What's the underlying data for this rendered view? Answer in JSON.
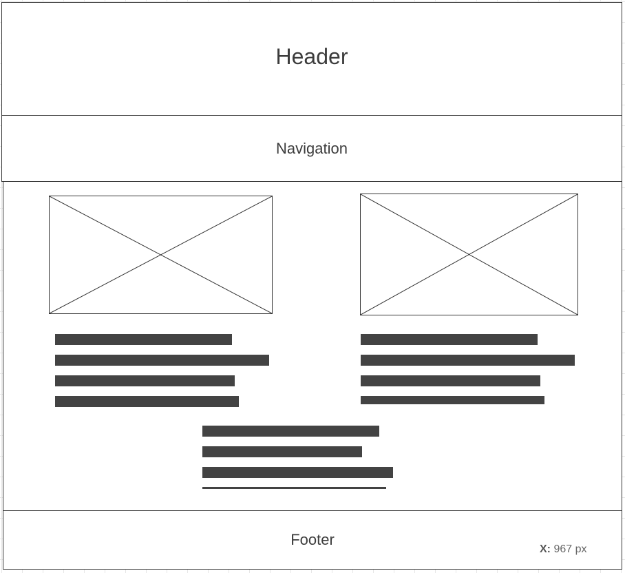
{
  "wireframe": {
    "header_label": "Header",
    "navigation_label": "Navigation",
    "footer_label": "Footer"
  },
  "coordinate_readout": {
    "axis": "X:",
    "value": "967 px"
  }
}
